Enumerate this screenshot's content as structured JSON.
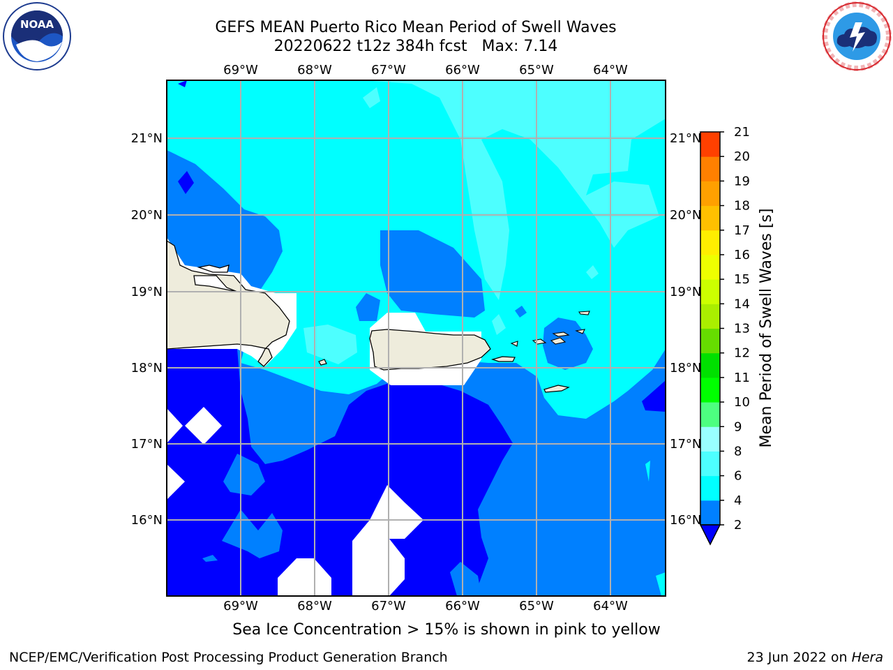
{
  "title_line1": "GEFS MEAN Puerto Rico Mean Period of Swell Waves",
  "title_line2": "20220622 t12z 384h fcst   Max: 7.14",
  "note": "Sea Ice Concentration > 15% is shown in pink to yellow",
  "footer_left": "NCEP/EMC/Verification Post Processing Product Generation Branch",
  "footer_right_date": "23 Jun 2022 on ",
  "footer_right_host": "Hera",
  "logos": {
    "noaa_text": "NOAA",
    "noaa_ring": "NATIONAL OCEANIC AND ATMOSPHERIC ADMINISTRATION · U.S. DEPARTMENT OF COMMERCE",
    "nws_ring": "NATIONAL WEATHER SERVICE"
  },
  "map": {
    "lon_labels": [
      "69°W",
      "68°W",
      "67°W",
      "66°W",
      "65°W",
      "64°W"
    ],
    "lat_labels": [
      "21°N",
      "20°N",
      "19°N",
      "18°N",
      "17°N",
      "16°N"
    ],
    "colors": {
      "land": "#eeecdc",
      "ocean_under_2": "#0000ff",
      "band_2_4": "#0080ff",
      "band_4_6": "#00ffff",
      "band_6_8": "#4dffff",
      "grid": "#b0b0b0"
    }
  },
  "colorbar": {
    "label": "Mean Period of Swell Waves [s]",
    "ticks": [
      "2",
      "4",
      "6",
      "8",
      "9",
      "10",
      "11",
      "12",
      "13",
      "14",
      "15",
      "16",
      "17",
      "18",
      "19",
      "20",
      "21"
    ],
    "colors": [
      "#0080ff",
      "#00ffff",
      "#4dffff",
      "#99ffff",
      "#4dff80",
      "#00ff00",
      "#00e000",
      "#66dd00",
      "#aaee00",
      "#ccff00",
      "#eeff00",
      "#ffee00",
      "#ffc000",
      "#ffa000",
      "#ff8000",
      "#ff4000",
      "#ff2000",
      "#ff0000"
    ]
  }
}
